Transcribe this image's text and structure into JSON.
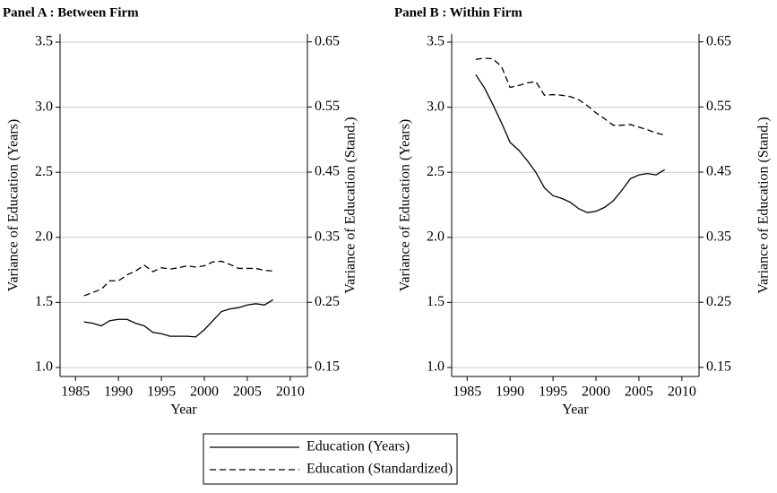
{
  "chart_data": [
    {
      "type": "line",
      "title": "Panel A : Between Firm",
      "xlabel": "Year",
      "ylabel": "Variance of Education (Years)",
      "y2label": "Variance of Education (Stand.)",
      "x": [
        1986,
        1987,
        1988,
        1989,
        1990,
        1991,
        1992,
        1993,
        1994,
        1995,
        1996,
        1997,
        1998,
        1999,
        2000,
        2001,
        2002,
        2003,
        2004,
        2005,
        2006,
        2007,
        2008
      ],
      "series": [
        {
          "name": "Education (Years)",
          "color": "#000000",
          "style": "solid",
          "axis": "y",
          "values": [
            1.35,
            1.34,
            1.32,
            1.36,
            1.37,
            1.37,
            1.34,
            1.32,
            1.27,
            1.26,
            1.24,
            1.24,
            1.24,
            1.235,
            1.29,
            1.36,
            1.43,
            1.45,
            1.46,
            1.48,
            1.49,
            1.48,
            1.52
          ]
        },
        {
          "name": "Education (Standardized)",
          "color": "#000000",
          "style": "dashed",
          "axis": "y2",
          "values": [
            0.26,
            0.265,
            0.27,
            0.283,
            0.283,
            0.292,
            0.298,
            0.307,
            0.297,
            0.303,
            0.301,
            0.303,
            0.306,
            0.304,
            0.306,
            0.312,
            0.313,
            0.308,
            0.302,
            0.302,
            0.302,
            0.299,
            0.298
          ]
        }
      ],
      "xlim": [
        1983.2,
        2012
      ],
      "xticks": [
        1985,
        1990,
        1995,
        2000,
        2005,
        2010
      ],
      "ylim": [
        0.931,
        3.562
      ],
      "yticks": [
        {
          "value": 1,
          "label": "1.0"
        },
        1.5,
        {
          "value": 2,
          "label": "2.0"
        },
        2.5,
        {
          "value": 3,
          "label": "3.0"
        },
        3.5
      ],
      "y2lim": [
        0.136,
        0.662
      ],
      "y2ticks": [
        0.15,
        0.25,
        0.35,
        0.45,
        0.55,
        0.65
      ],
      "grid": true
    },
    {
      "type": "line",
      "title": "Panel B : Within Firm",
      "xlabel": "Year",
      "ylabel": "Variance of Education (Years)",
      "y2label": "Variance of Education (Stand.)",
      "x": [
        1986,
        1987,
        1988,
        1989,
        1990,
        1991,
        1992,
        1993,
        1994,
        1995,
        1996,
        1997,
        1998,
        1999,
        2000,
        2001,
        2002,
        2003,
        2004,
        2005,
        2006,
        2007,
        2008
      ],
      "series": [
        {
          "name": "Education (Years)",
          "color": "#000000",
          "style": "solid",
          "axis": "y",
          "values": [
            3.25,
            3.15,
            3.02,
            2.88,
            2.73,
            2.67,
            2.59,
            2.5,
            2.38,
            2.32,
            2.3,
            2.27,
            2.22,
            2.19,
            2.2,
            2.23,
            2.28,
            2.36,
            2.45,
            2.48,
            2.49,
            2.48,
            2.52
          ]
        },
        {
          "name": "Education (Standardized)",
          "color": "#000000",
          "style": "dashed",
          "axis": "y2",
          "values": [
            0.623,
            0.625,
            0.624,
            0.612,
            0.58,
            0.583,
            0.587,
            0.589,
            0.568,
            0.569,
            0.568,
            0.566,
            0.561,
            0.552,
            0.541,
            0.532,
            0.522,
            0.522,
            0.523,
            0.519,
            0.515,
            0.51,
            0.507
          ]
        }
      ],
      "xlim": [
        1983.2,
        2012
      ],
      "xticks": [
        1985,
        1990,
        1995,
        2000,
        2005,
        2010
      ],
      "ylim": [
        0.931,
        3.562
      ],
      "yticks": [
        {
          "value": 1,
          "label": "1.0"
        },
        1.5,
        {
          "value": 2,
          "label": "2.0"
        },
        2.5,
        {
          "value": 3,
          "label": "3.0"
        },
        3.5
      ],
      "y2lim": [
        0.136,
        0.662
      ],
      "y2ticks": [
        0.15,
        0.25,
        0.35,
        0.45,
        0.55,
        0.65
      ],
      "grid": true
    }
  ]
}
